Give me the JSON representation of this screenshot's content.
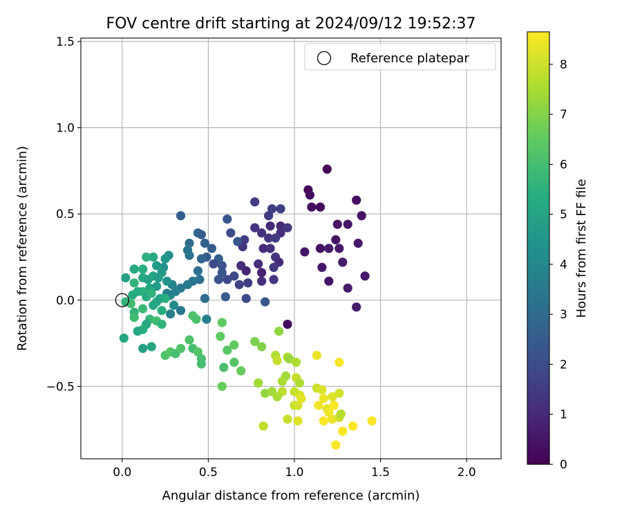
{
  "chart_data": {
    "type": "scatter",
    "title": "FOV centre drift starting at 2024/09/12 19:52:37",
    "xlabel": "Angular distance from reference (arcmin)",
    "ylabel": "Rotation from reference (arcmin)",
    "xlim": [
      -0.24,
      2.2
    ],
    "ylim": [
      -0.92,
      1.52
    ],
    "x_ticks": [
      0.0,
      0.5,
      1.0,
      1.5,
      2.0
    ],
    "x_tick_labels": [
      "0.0",
      "0.5",
      "1.0",
      "1.5",
      "2.0"
    ],
    "y_ticks": [
      -0.5,
      0.0,
      0.5,
      1.0,
      1.5
    ],
    "y_tick_labels": [
      "−0.5",
      "0.0",
      "0.5",
      "1.0",
      "1.5"
    ],
    "grid": true,
    "legend": {
      "placement": "top-right",
      "entries": [
        {
          "label": "Reference platepar",
          "marker": "open-circle"
        }
      ]
    },
    "reference_point": {
      "x": 0.0,
      "y": 0.0
    },
    "colorbar": {
      "label": "Hours from first FF file",
      "colormap": "viridis",
      "range": [
        0,
        8.65
      ],
      "ticks": [
        0,
        1,
        2,
        3,
        4,
        5,
        6,
        7,
        8
      ],
      "tick_labels": [
        "0",
        "1",
        "2",
        "3",
        "4",
        "5",
        "6",
        "7",
        "8"
      ]
    },
    "points": [
      [
        1.19,
        0.76,
        0.1
      ],
      [
        1.08,
        0.64,
        0.2
      ],
      [
        1.09,
        0.61,
        0.3
      ],
      [
        1.1,
        0.54,
        0.3
      ],
      [
        1.15,
        0.54,
        0.2
      ],
      [
        1.36,
        0.58,
        0.3
      ],
      [
        1.39,
        0.49,
        0.4
      ],
      [
        1.25,
        0.44,
        0.4
      ],
      [
        1.31,
        0.44,
        0.5
      ],
      [
        1.06,
        0.28,
        0.5
      ],
      [
        1.15,
        0.3,
        0.4
      ],
      [
        1.2,
        0.3,
        0.6
      ],
      [
        1.24,
        0.35,
        0.5
      ],
      [
        1.26,
        0.3,
        0.6
      ],
      [
        1.28,
        0.22,
        0.7
      ],
      [
        1.37,
        0.33,
        0.6
      ],
      [
        1.16,
        0.19,
        0.6
      ],
      [
        1.2,
        0.11,
        0.5
      ],
      [
        1.31,
        0.07,
        0.7
      ],
      [
        1.41,
        0.14,
        0.6
      ],
      [
        1.36,
        -0.04,
        0.7
      ],
      [
        0.96,
        -0.14,
        0.2
      ],
      [
        0.77,
        0.57,
        1.5
      ],
      [
        0.87,
        0.53,
        1.6
      ],
      [
        0.92,
        0.53,
        1.6
      ],
      [
        0.85,
        0.49,
        1.5
      ],
      [
        0.77,
        0.42,
        1.3
      ],
      [
        0.81,
        0.39,
        1.2
      ],
      [
        0.86,
        0.43,
        1.0
      ],
      [
        0.92,
        0.43,
        1.0
      ],
      [
        0.96,
        0.42,
        1.4
      ],
      [
        0.92,
        0.39,
        1.1
      ],
      [
        0.85,
        0.36,
        1.3
      ],
      [
        0.89,
        0.36,
        1.5
      ],
      [
        0.71,
        0.35,
        1.5
      ],
      [
        0.7,
        0.31,
        1.3
      ],
      [
        0.82,
        0.3,
        1.0
      ],
      [
        0.86,
        0.3,
        1.2
      ],
      [
        0.89,
        0.25,
        1.3
      ],
      [
        0.91,
        0.22,
        1.0
      ],
      [
        0.79,
        0.21,
        1.1
      ],
      [
        0.69,
        0.2,
        1.1
      ],
      [
        0.72,
        0.17,
        0.9
      ],
      [
        0.81,
        0.16,
        0.8
      ],
      [
        0.88,
        0.19,
        1.4
      ],
      [
        0.81,
        0.11,
        1.1
      ],
      [
        0.88,
        0.12,
        1.3
      ],
      [
        0.73,
        0.1,
        1.6
      ],
      [
        0.68,
        0.09,
        1.7
      ],
      [
        0.72,
        0.01,
        2.0
      ],
      [
        0.83,
        -0.01,
        2.3
      ],
      [
        0.61,
        0.47,
        2.3
      ],
      [
        0.63,
        0.39,
        2.0
      ],
      [
        0.67,
        0.34,
        2.3
      ],
      [
        0.65,
        0.14,
        1.9
      ],
      [
        0.58,
        0.2,
        2.2
      ],
      [
        0.56,
        0.24,
        2.6
      ],
      [
        0.52,
        0.3,
        2.5
      ],
      [
        0.49,
        0.25,
        2.5
      ],
      [
        0.53,
        0.21,
        2.0
      ],
      [
        0.58,
        0.16,
        2.3
      ],
      [
        0.61,
        0.12,
        1.9
      ],
      [
        0.56,
        0.12,
        2.2
      ],
      [
        0.6,
        0.02,
        2.5
      ],
      [
        0.34,
        0.49,
        2.6
      ],
      [
        0.44,
        0.39,
        3.0
      ],
      [
        0.46,
        0.38,
        2.6
      ],
      [
        0.39,
        0.33,
        3.0
      ],
      [
        0.48,
        0.33,
        2.6
      ],
      [
        0.38,
        0.29,
        3.3
      ],
      [
        0.39,
        0.26,
        3.4
      ],
      [
        0.46,
        0.24,
        2.8
      ],
      [
        0.44,
        0.17,
        3.2
      ],
      [
        0.41,
        0.11,
        3.4
      ],
      [
        0.45,
        0.12,
        3.2
      ],
      [
        0.38,
        0.09,
        3.5
      ],
      [
        0.34,
        0.07,
        3.5
      ],
      [
        0.29,
        0.09,
        3.8
      ],
      [
        0.31,
        0.05,
        3.7
      ],
      [
        0.28,
        0.03,
        3.8
      ],
      [
        0.26,
        0.04,
        3.6
      ],
      [
        0.3,
        -0.03,
        4.1
      ],
      [
        0.28,
        -0.08,
        3.7
      ],
      [
        0.34,
        -0.06,
        3.5
      ],
      [
        0.48,
        0.01,
        3.0
      ],
      [
        0.49,
        -0.11,
        3.7
      ],
      [
        0.27,
        0.26,
        4.2
      ],
      [
        0.25,
        0.24,
        4.5
      ],
      [
        0.24,
        0.19,
        4.3
      ],
      [
        0.2,
        0.2,
        4.7
      ],
      [
        0.23,
        0.16,
        4.6
      ],
      [
        0.18,
        0.25,
        5.2
      ],
      [
        0.14,
        0.25,
        5.5
      ],
      [
        0.07,
        0.18,
        5.2
      ],
      [
        0.12,
        0.18,
        5.4
      ],
      [
        0.18,
        0.14,
        5.0
      ],
      [
        0.21,
        0.13,
        4.8
      ],
      [
        0.26,
        0.11,
        4.4
      ],
      [
        0.12,
        0.13,
        5.2
      ],
      [
        0.15,
        0.12,
        5.0
      ],
      [
        0.02,
        0.13,
        4.9
      ],
      [
        0.07,
        0.1,
        5.6
      ],
      [
        0.16,
        0.07,
        5.1
      ],
      [
        0.2,
        0.08,
        4.7
      ],
      [
        0.12,
        0.05,
        5.5
      ],
      [
        0.09,
        0.05,
        5.3
      ],
      [
        0.06,
        0.03,
        5.3
      ],
      [
        0.14,
        0.02,
        5.3
      ],
      [
        0.17,
        0.04,
        5.6
      ],
      [
        0.2,
        -0.01,
        5.2
      ],
      [
        0.22,
        0.01,
        5.0
      ],
      [
        0.25,
        0.01,
        5.4
      ],
      [
        0.02,
        -0.01,
        5.6
      ],
      [
        0.05,
        -0.02,
        5.9
      ],
      [
        0.12,
        -0.05,
        5.8
      ],
      [
        0.18,
        -0.03,
        5.1
      ],
      [
        0.23,
        -0.06,
        5.4
      ],
      [
        0.07,
        -0.07,
        5.6
      ],
      [
        0.07,
        -0.1,
        5.9
      ],
      [
        0.16,
        -0.11,
        5.7
      ],
      [
        0.2,
        -0.12,
        5.9
      ],
      [
        0.23,
        -0.14,
        5.6
      ],
      [
        0.14,
        -0.14,
        5.2
      ],
      [
        0.12,
        -0.17,
        5.4
      ],
      [
        0.09,
        -0.18,
        5.1
      ],
      [
        0.01,
        -0.22,
        5.1
      ],
      [
        0.12,
        -0.28,
        4.9
      ],
      [
        0.17,
        -0.27,
        5.1
      ],
      [
        0.25,
        -0.32,
        6.2
      ],
      [
        0.28,
        -0.3,
        6.3
      ],
      [
        0.31,
        -0.31,
        6.0
      ],
      [
        0.34,
        -0.28,
        6.2
      ],
      [
        0.41,
        -0.09,
        6.2
      ],
      [
        0.43,
        -0.11,
        6.1
      ],
      [
        0.39,
        -0.23,
        6.2
      ],
      [
        0.41,
        -0.28,
        6.0
      ],
      [
        0.44,
        -0.3,
        6.3
      ],
      [
        0.46,
        -0.34,
        6.1
      ],
      [
        0.46,
        -0.37,
        6.0
      ],
      [
        0.57,
        -0.21,
        6.5
      ],
      [
        0.58,
        -0.13,
        6.5
      ],
      [
        0.61,
        -0.29,
        6.4
      ],
      [
        0.65,
        -0.26,
        6.5
      ],
      [
        0.59,
        -0.39,
        6.1
      ],
      [
        0.65,
        -0.36,
        6.3
      ],
      [
        0.69,
        -0.41,
        6.6
      ],
      [
        0.58,
        -0.5,
        6.6
      ],
      [
        0.77,
        -0.24,
        6.9
      ],
      [
        0.81,
        -0.27,
        7.0
      ],
      [
        0.91,
        -0.18,
        7.2
      ],
      [
        0.79,
        -0.48,
        7.4
      ],
      [
        0.83,
        -0.54,
        7.2
      ],
      [
        0.87,
        -0.53,
        7.4
      ],
      [
        0.82,
        -0.73,
        7.8
      ],
      [
        0.89,
        -0.32,
        7.6
      ],
      [
        0.9,
        -0.35,
        7.9
      ],
      [
        0.96,
        -0.33,
        7.6
      ],
      [
        0.97,
        -0.34,
        7.3
      ],
      [
        1.01,
        -0.36,
        7.6
      ],
      [
        0.95,
        -0.44,
        7.4
      ],
      [
        0.93,
        -0.47,
        7.5
      ],
      [
        1.01,
        -0.45,
        7.9
      ],
      [
        1.03,
        -0.48,
        7.6
      ],
      [
        0.93,
        -0.53,
        7.8
      ],
      [
        0.9,
        -0.56,
        7.5
      ],
      [
        1.0,
        -0.53,
        7.9
      ],
      [
        1.03,
        -0.55,
        8.1
      ],
      [
        1.04,
        -0.57,
        8.3
      ],
      [
        1.0,
        -0.61,
        7.9
      ],
      [
        1.02,
        -0.61,
        8.1
      ],
      [
        0.96,
        -0.69,
        7.9
      ],
      [
        1.02,
        -0.7,
        8.2
      ],
      [
        1.13,
        -0.32,
        8.4
      ],
      [
        1.26,
        -0.36,
        8.6
      ],
      [
        1.13,
        -0.51,
        8.0
      ],
      [
        1.16,
        -0.52,
        8.2
      ],
      [
        1.17,
        -0.57,
        8.4
      ],
      [
        1.22,
        -0.56,
        8.2
      ],
      [
        1.26,
        -0.54,
        8.1
      ],
      [
        1.14,
        -0.61,
        8.5
      ],
      [
        1.19,
        -0.63,
        8.3
      ],
      [
        1.23,
        -0.61,
        8.6
      ],
      [
        1.2,
        -0.65,
        8.5
      ],
      [
        1.17,
        -0.7,
        8.6
      ],
      [
        1.22,
        -0.69,
        8.4
      ],
      [
        1.26,
        -0.68,
        8.0
      ],
      [
        1.27,
        -0.66,
        7.7
      ],
      [
        1.28,
        -0.76,
        8.6
      ],
      [
        1.34,
        -0.73,
        8.6
      ],
      [
        1.45,
        -0.7,
        8.6
      ],
      [
        1.24,
        -0.84,
        8.6
      ]
    ]
  }
}
